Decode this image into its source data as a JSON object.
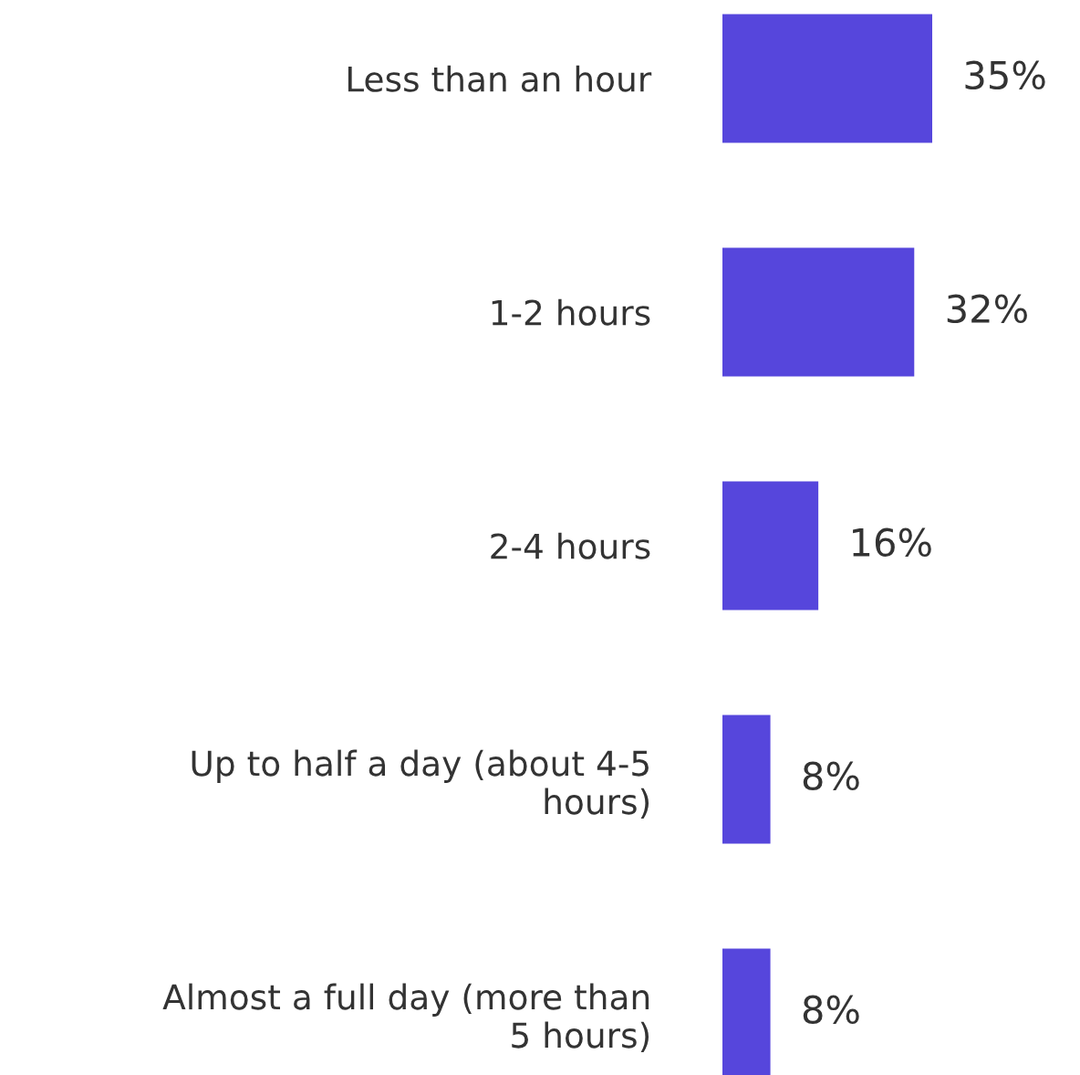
{
  "chart_data": {
    "type": "bar",
    "orientation": "horizontal",
    "categories": [
      "Less than an hour",
      "1-2 hours",
      "2-4 hours",
      "Up to half a day (about 4-5\nhours)",
      "Almost a full day (more than\n5 hours)"
    ],
    "values": [
      35,
      32,
      16,
      8,
      8
    ],
    "value_labels": [
      "35%",
      "32%",
      "16%",
      "8%",
      "8%"
    ],
    "color": "#5646dc",
    "grid": false,
    "legend": false
  }
}
